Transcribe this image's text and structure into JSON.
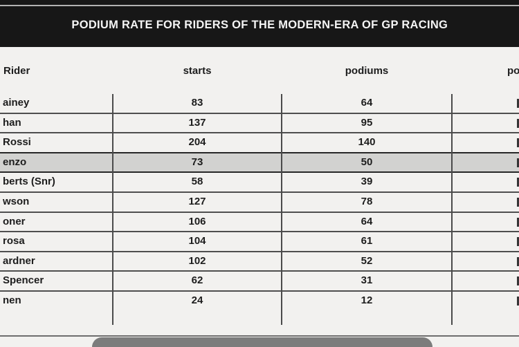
{
  "banner": {
    "title": "PODIUM RATE FOR RIDERS OF THE MODERN-ERA OF GP RACING"
  },
  "table": {
    "header": {
      "rider": "Rider",
      "starts": "starts",
      "podiums": "podiums",
      "rate_fragment": "po"
    },
    "rows": [
      {
        "rider": "ainey",
        "starts": "83",
        "podiums": "64",
        "highlight": false
      },
      {
        "rider": "han",
        "starts": "137",
        "podiums": "95",
        "highlight": false
      },
      {
        "rider": "Rossi",
        "starts": "204",
        "podiums": "140",
        "highlight": false
      },
      {
        "rider": "enzo",
        "starts": "73",
        "podiums": "50",
        "highlight": true
      },
      {
        "rider": "berts (Snr)",
        "starts": "58",
        "podiums": "39",
        "highlight": false
      },
      {
        "rider": "wson",
        "starts": "127",
        "podiums": "78",
        "highlight": false
      },
      {
        "rider": "oner",
        "starts": "106",
        "podiums": "64",
        "highlight": false
      },
      {
        "rider": "rosa",
        "starts": "104",
        "podiums": "61",
        "highlight": false
      },
      {
        "rider": "ardner",
        "starts": "102",
        "podiums": "52",
        "highlight": false
      },
      {
        "rider": "Spencer",
        "starts": "62",
        "podiums": "31",
        "highlight": false
      },
      {
        "rider": "nen",
        "starts": "24",
        "podiums": "12",
        "highlight": false
      }
    ]
  },
  "colors": {
    "banner_bg": "#171717",
    "banner_text": "#f5f5f5",
    "page_bg": "#f2f1ef",
    "row_highlight": "#d2d2d0",
    "grid_border": "#4e4e4e",
    "bottom_tab": "#7c7c7c"
  },
  "chart_data": {
    "type": "table",
    "title": "PODIUM RATE FOR RIDERS OF THE MODERN-ERA OF GP RACING",
    "columns": [
      "Rider",
      "starts",
      "podiums",
      "po"
    ],
    "rows": [
      [
        "ainey",
        83,
        64
      ],
      [
        "han",
        137,
        95
      ],
      [
        "Rossi",
        204,
        140
      ],
      [
        "enzo",
        73,
        50
      ],
      [
        "berts (Snr)",
        58,
        39
      ],
      [
        "wson",
        127,
        78
      ],
      [
        "oner",
        106,
        64
      ],
      [
        "rosa",
        104,
        61
      ],
      [
        "ardner",
        102,
        52
      ],
      [
        "Spencer",
        62,
        31
      ],
      [
        "nen",
        24,
        12
      ]
    ],
    "highlighted_row_index": 3,
    "clipped_edges": [
      "rider names clipped at left edge",
      "fourth column clipped at right edge"
    ]
  }
}
